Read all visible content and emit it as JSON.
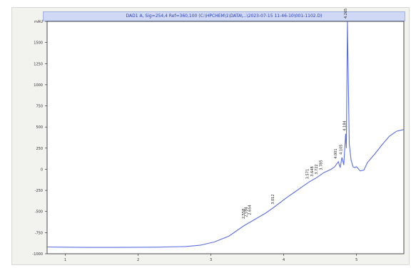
{
  "window": {
    "top_title": "",
    "chart_title": "DAD1 A, Sig=254,4 Ref=360,100 (C:\\HPCHEM\\1\\DATA\\...\\2023-07-15 11-46-10\\001-1102.D)"
  },
  "colors": {
    "trace": "#5b6ee0",
    "peak_label": "#c03a9a",
    "text": "#222222",
    "title_bar": "#cfd8f4"
  },
  "chart_data": {
    "type": "line",
    "title": "",
    "xlabel": "",
    "ylabel": "",
    "xlim": [
      0,
      9.8
    ],
    "ylim": [
      -1000,
      1750
    ],
    "y_ticks": [
      -1000,
      -750,
      -500,
      -250,
      0,
      250,
      500,
      750,
      1000,
      1250,
      1500,
      1750
    ],
    "y_tick_labels": [
      "-1000",
      "-750",
      "-500",
      "-250",
      "0",
      "250",
      "500",
      "750",
      "1000",
      "1250",
      "1500",
      "mAU"
    ],
    "x_ticks": [
      0.5,
      2.5,
      4.5,
      6.5,
      8.5
    ],
    "x_tick_labels": [
      "1",
      "2",
      "3",
      "4",
      "5"
    ],
    "grid": false,
    "legend": "none",
    "series": [
      {
        "x": [
          0.0,
          0.5,
          1.0,
          2.0,
          3.0,
          3.8,
          4.2,
          4.6,
          5.0,
          5.4,
          5.6,
          5.8,
          6.0,
          6.2,
          6.6,
          6.8,
          7.0,
          7.2,
          7.4,
          7.6,
          7.8,
          7.9,
          8.0,
          8.05,
          8.1,
          8.15,
          8.2,
          8.22,
          8.25,
          8.3,
          8.35,
          8.4,
          8.45,
          8.5,
          8.6,
          8.7,
          8.8,
          9.0,
          9.2,
          9.4,
          9.6,
          9.8
        ],
        "y": [
          -920,
          -922,
          -925,
          -925,
          -922,
          -915,
          -900,
          -860,
          -790,
          -670,
          -620,
          -570,
          -520,
          -460,
          -330,
          -270,
          -210,
          -150,
          -100,
          -40,
          0,
          30,
          90,
          20,
          140,
          50,
          420,
          250,
          1750,
          300,
          110,
          30,
          20,
          30,
          -20,
          -10,
          80,
          180,
          290,
          390,
          450,
          470
        ]
      }
    ],
    "peaks": [
      {
        "rt_label": "2.558",
        "name": "",
        "x": 5.45,
        "y": -620
      },
      {
        "rt_label": "2.594",
        "name": "",
        "x": 5.52,
        "y": -600
      },
      {
        "rt_label": "2.654",
        "name": "",
        "x": 5.62,
        "y": -575
      },
      {
        "rt_label": "3.012",
        "name": "",
        "x": 6.25,
        "y": -450
      },
      {
        "rt_label": "3.571",
        "name": "",
        "x": 7.2,
        "y": -150
      },
      {
        "rt_label": "3.648",
        "name": "",
        "x": 7.33,
        "y": -120
      },
      {
        "rt_label": "3.722",
        "name": "",
        "x": 7.45,
        "y": -95
      },
      {
        "rt_label": "3.785",
        "name": "",
        "x": 7.58,
        "y": -45
      },
      {
        "rt_label": "4.001",
        "name": "",
        "x": 7.98,
        "y": 90
      },
      {
        "rt_label": "4.105",
        "name": "",
        "x": 8.12,
        "y": 140
      },
      {
        "rt_label": "4.184",
        "name": "",
        "x": 8.22,
        "y": 420
      },
      {
        "rt_label": "4.265",
        "name": "",
        "x": 8.25,
        "y": 1750
      }
    ]
  }
}
